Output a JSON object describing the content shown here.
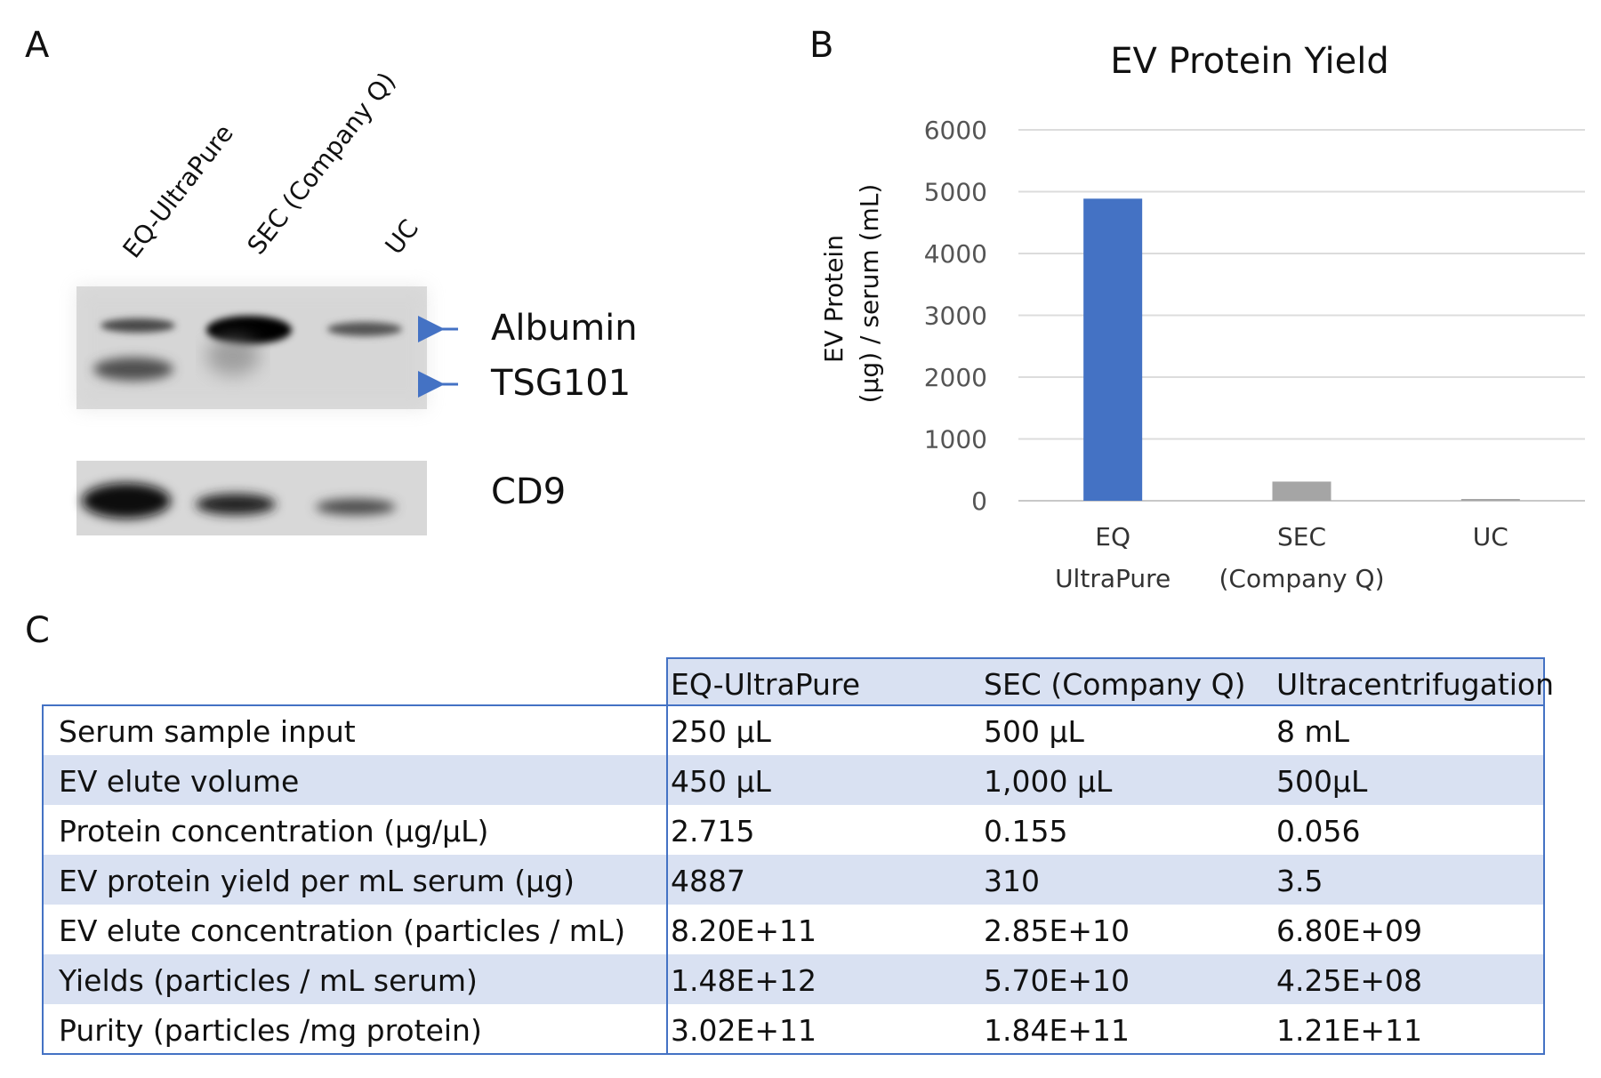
{
  "panels": {
    "a": "A",
    "b": "B",
    "c": "C"
  },
  "blot": {
    "lanes": [
      "EQ-UltraPure",
      "SEC (Company Q)",
      "UC"
    ],
    "markers": [
      "Albumin",
      "TSG101",
      "CD9"
    ],
    "arrow_color": "#4472c4"
  },
  "chart_data": {
    "type": "bar",
    "title": "EV Protein Yield",
    "ylabel_line1": "EV Protein",
    "ylabel_line2": "(µg) / serum (mL)",
    "xlabel": "",
    "categories": [
      [
        "EQ",
        "UltraPure"
      ],
      [
        "SEC",
        "(Company Q)"
      ],
      [
        "UC"
      ]
    ],
    "values": [
      4887,
      310,
      3.5
    ],
    "colors": [
      "#4472c4",
      "#a5a5a5",
      "#a5a5a5"
    ],
    "yticks": [
      0,
      1000,
      2000,
      3000,
      4000,
      5000,
      6000
    ],
    "ylim": [
      0,
      6000
    ],
    "grid": true
  },
  "table": {
    "header": [
      "EQ-UltraPure",
      "SEC (Company Q)",
      "Ultracentrifugation"
    ],
    "rows": [
      [
        "Serum sample input",
        "250 µL",
        "500 µL",
        "8 mL"
      ],
      [
        "EV elute volume",
        "450 µL",
        "1,000 µL",
        "500µL"
      ],
      [
        "Protein concentration (µg/µL)",
        "2.715",
        "0.155",
        "0.056"
      ],
      [
        "EV protein yield per mL serum (µg)",
        "4887",
        "310",
        "3.5"
      ],
      [
        "EV elute concentration (particles / mL)",
        "8.20E+11",
        "2.85E+10",
        "6.80E+09"
      ],
      [
        "Yields (particles / mL serum)",
        "1.48E+12",
        "5.70E+10",
        "4.25E+08"
      ],
      [
        "Purity (particles /mg protein)",
        "3.02E+11",
        "1.84E+11",
        "1.21E+11"
      ]
    ],
    "border_color": "#4472c4",
    "stripe_color": "#d9e1f2"
  }
}
